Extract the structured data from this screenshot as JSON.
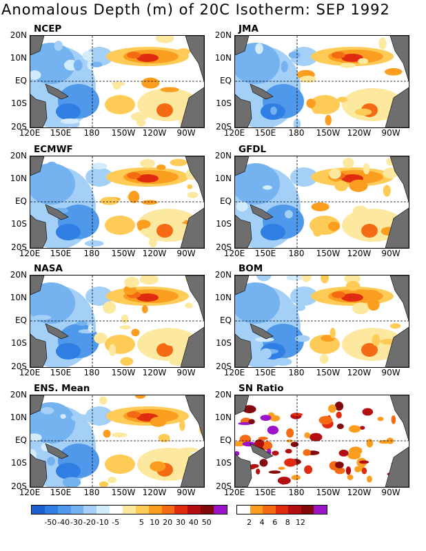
{
  "title": "Anomalous Depth (m) of 20C Isotherm: SEP 1992",
  "y_ticks": [
    "20N",
    "10N",
    "EQ",
    "10S",
    "20S"
  ],
  "x_ticks": [
    "120E",
    "150E",
    "180",
    "150W",
    "120W",
    "90W"
  ],
  "colors": {
    "land": "#6e6e6e",
    "anomaly_scale": [
      "#1e5fcf",
      "#2f7ee3",
      "#4f98ea",
      "#74b2f0",
      "#a4d0f8",
      "#d3ecfb",
      "#ffffff",
      "#fde8a0",
      "#fdcb56",
      "#fb9e1f",
      "#f56b13",
      "#df2b10",
      "#b40f10",
      "#820a0a",
      "#9b14c8"
    ],
    "sn_scale": [
      "#ffffff",
      "#fb9e1f",
      "#f56b13",
      "#df2b10",
      "#b40f10",
      "#820a0a",
      "#9b14c8"
    ]
  },
  "panels": [
    {
      "name": "NCEP",
      "type": "anom"
    },
    {
      "name": "JMA",
      "type": "anom"
    },
    {
      "name": "ECMWF",
      "type": "anom"
    },
    {
      "name": "GFDL",
      "type": "anom"
    },
    {
      "name": "NASA",
      "type": "anom"
    },
    {
      "name": "BOM",
      "type": "anom"
    },
    {
      "name": "ENS. Mean",
      "type": "anom"
    },
    {
      "name": "SN Ratio",
      "type": "sn"
    }
  ],
  "anomaly_colorbar_labels": [
    "-50",
    "-40",
    "-30",
    "-20",
    "-10",
    "-5",
    "5",
    "10",
    "20",
    "30",
    "40",
    "50"
  ],
  "sn_colorbar_labels": [
    "2",
    "4",
    "6",
    "8",
    "12"
  ]
}
